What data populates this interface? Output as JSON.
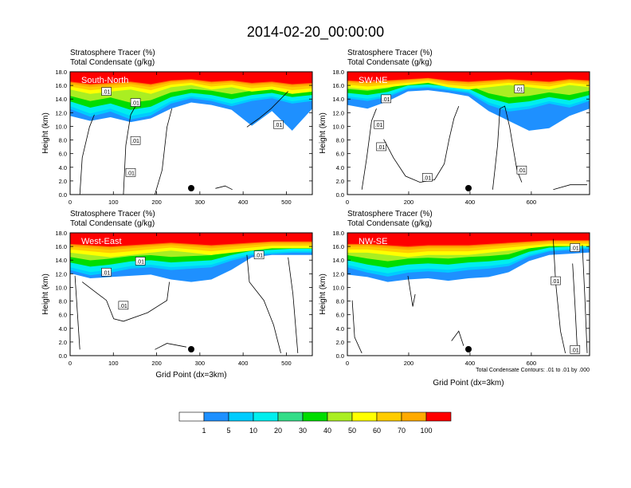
{
  "title": "2014-02-20_00:00:00",
  "chart_data": [
    {
      "type": "heatmap",
      "panel_label": "South-North",
      "header_line1": "Stratosphere Tracer   (%)",
      "header_line2": "Total Condensate   (g/kg)",
      "ylabel": "Height (km)",
      "xlabel": "",
      "xlim": [
        0,
        560
      ],
      "ylim": [
        0,
        18
      ],
      "xticks": [
        0,
        100,
        200,
        300,
        400,
        500
      ],
      "yticks": [
        "0.0",
        "2.0",
        "4.0",
        "6.0",
        "8.0",
        "10.0",
        "12.0",
        "14.0",
        "16.0",
        "18.0"
      ],
      "marker_x": 280,
      "contour_labels": [
        ".01",
        ".01",
        ".01",
        ".01",
        ".01"
      ],
      "footnote": ""
    },
    {
      "type": "heatmap",
      "panel_label": "SW-NE",
      "header_line1": "Stratosphere Tracer   (%)",
      "header_line2": "Total Condensate   (g/kg)",
      "ylabel": "Height (km)",
      "xlabel": "",
      "xlim": [
        0,
        790
      ],
      "ylim": [
        0,
        18
      ],
      "xticks": [
        0,
        200,
        400,
        600
      ],
      "yticks": [
        "0.0",
        "2.0",
        "4.0",
        "6.0",
        "8.0",
        "10.0",
        "12.0",
        "14.0",
        "16.0",
        "18.0"
      ],
      "marker_x": 395,
      "contour_labels": [
        ".01",
        ".01",
        ".01",
        ".01",
        ".01",
        ".01"
      ],
      "footnote": ""
    },
    {
      "type": "heatmap",
      "panel_label": "West-East",
      "header_line1": "Stratosphere Tracer   (%)",
      "header_line2": "Total Condensate   (g/kg)",
      "ylabel": "Height (km)",
      "xlabel": "Grid Point (dx=3km)",
      "xlim": [
        0,
        560
      ],
      "ylim": [
        0,
        18
      ],
      "xticks": [
        0,
        100,
        200,
        300,
        400,
        500
      ],
      "yticks": [
        "0.0",
        "2.0",
        "4.0",
        "6.0",
        "8.0",
        "10.0",
        "12.0",
        "14.0",
        "16.0",
        "18.0"
      ],
      "marker_x": 280,
      "contour_labels": [
        ".01",
        ".01",
        ".01",
        ".01"
      ],
      "footnote": ""
    },
    {
      "type": "heatmap",
      "panel_label": "NW-SE",
      "header_line1": "Stratosphere Tracer   (%)",
      "header_line2": "Total Condensate   (g/kg)",
      "ylabel": "Height (km)",
      "xlabel": "Grid Point (dx=3km)",
      "xlim": [
        0,
        790
      ],
      "ylim": [
        0,
        18
      ],
      "xticks": [
        0,
        200,
        400,
        600
      ],
      "yticks": [
        "0.0",
        "2.0",
        "4.0",
        "6.0",
        "8.0",
        "10.0",
        "12.0",
        "14.0",
        "16.0",
        "18.0"
      ],
      "marker_x": 395,
      "contour_labels": [
        ".01",
        ".01",
        ".01"
      ],
      "footnote": "Total Condensate Contours: .01 to .01 by .000"
    }
  ],
  "colorbar": {
    "labels": [
      "1",
      "5",
      "10",
      "20",
      "30",
      "40",
      "50",
      "60",
      "70",
      "100"
    ],
    "colors": [
      "#ffffff",
      "#1e90ff",
      "#00ccff",
      "#00eeee",
      "#33dd88",
      "#00dd00",
      "#aaee22",
      "#ffff00",
      "#ffcc00",
      "#ffaa00",
      "#ff6600",
      "#ff0000"
    ]
  }
}
